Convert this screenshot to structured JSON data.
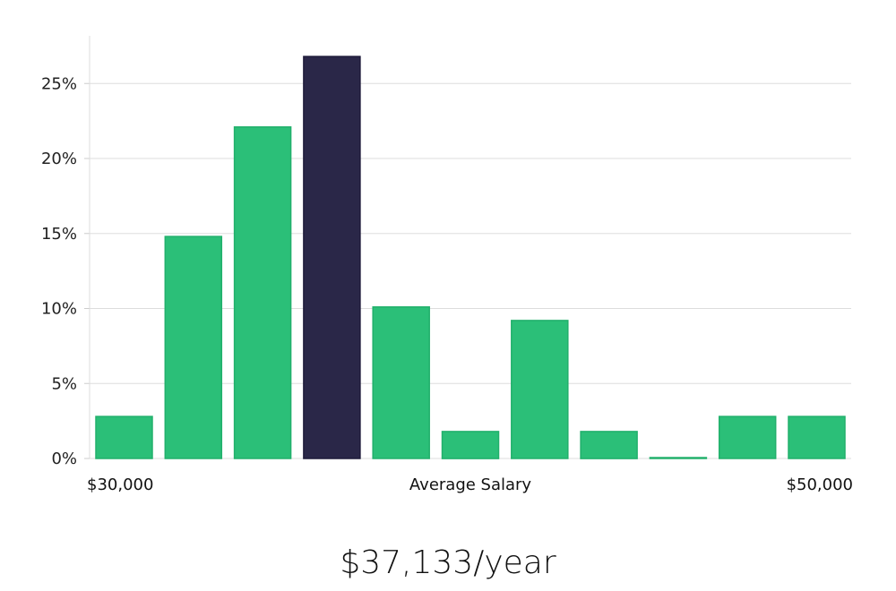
{
  "chart_data": {
    "type": "bar",
    "title": "",
    "xlabel": "Average Salary",
    "ylabel": "",
    "x_range_labels": [
      "$30,000",
      "$50,000"
    ],
    "values": [
      2.8,
      14.8,
      22.1,
      26.8,
      10.1,
      1.8,
      9.2,
      1.8,
      0.0,
      2.8,
      2.8
    ],
    "highlight_index": 3,
    "ylim": [
      0,
      28
    ],
    "yticks": [
      0,
      5,
      10,
      15,
      20,
      25
    ],
    "ytick_labels": [
      "0%",
      "5%",
      "10%",
      "15%",
      "20%",
      "25%"
    ],
    "grid": true,
    "legend": "none"
  },
  "colors": {
    "bar": "#2bbf78",
    "bar_highlight": "#2a2748",
    "grid": "#dddddd",
    "axis": "#cccccc"
  },
  "summary": {
    "salary": "$37,133/year"
  }
}
